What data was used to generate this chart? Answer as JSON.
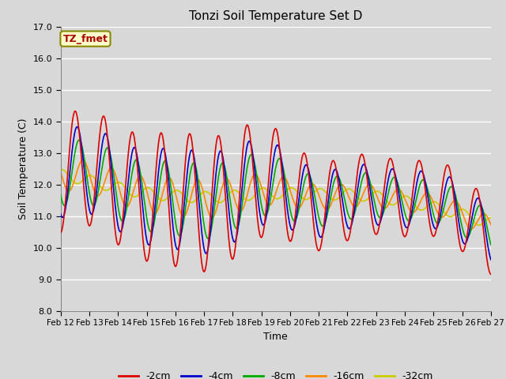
{
  "title": "Tonzi Soil Temperature Set D",
  "xlabel": "Time",
  "ylabel": "Soil Temperature (C)",
  "ylim": [
    8.0,
    17.0
  ],
  "yticks": [
    8.0,
    9.0,
    10.0,
    11.0,
    12.0,
    13.0,
    14.0,
    15.0,
    16.0,
    17.0
  ],
  "xtick_labels": [
    "Feb 12",
    "Feb 13",
    "Feb 14",
    "Feb 15",
    "Feb 16",
    "Feb 17",
    "Feb 18",
    "Feb 19",
    "Feb 20",
    "Feb 21",
    "Feb 22",
    "Feb 23",
    "Feb 24",
    "Feb 25",
    "Feb 26",
    "Feb 27"
  ],
  "annotation_text": "TZ_fmet",
  "annotation_color": "#aa0000",
  "annotation_bg": "#ffffcc",
  "annotation_border": "#888800",
  "series_colors": [
    "#dd0000",
    "#0000cc",
    "#00aa00",
    "#ff8800",
    "#cccc00"
  ],
  "legend_labels": [
    "-2cm",
    "-4cm",
    "-8cm",
    "-16cm",
    "-32cm"
  ],
  "legend_colors": [
    "#dd0000",
    "#0000cc",
    "#00aa00",
    "#ff8800",
    "#cccc00"
  ],
  "background_color": "#d8d8d8",
  "plot_bg_color": "#d8d8d8",
  "grid_color": "#ffffff",
  "figsize": [
    6.4,
    4.8
  ],
  "dpi": 100
}
